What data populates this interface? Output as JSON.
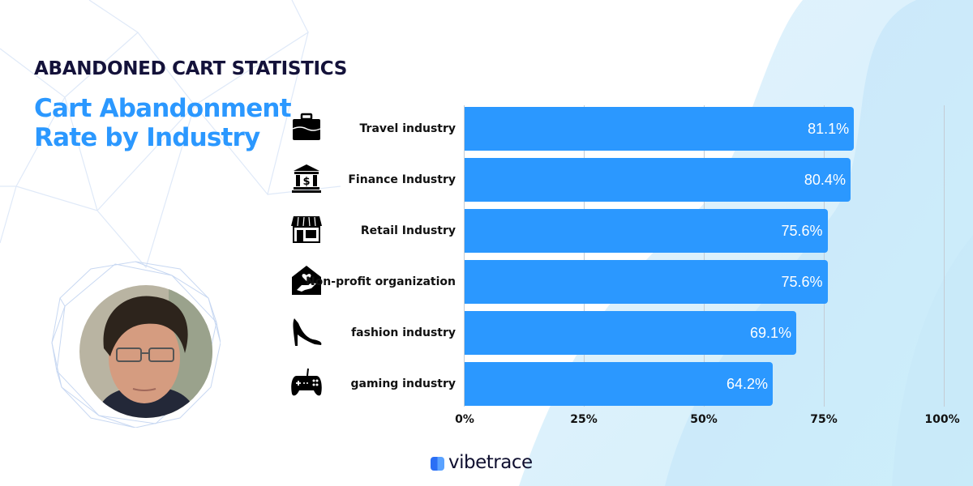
{
  "header": {
    "eyebrow": "ABANDONED CART STATISTICS",
    "title": "Cart Abandonment Rate by Industry"
  },
  "brand": {
    "name": "vibetrace",
    "icon": "vibetrace-logo-icon"
  },
  "colors": {
    "bar": "#2b98ff",
    "title": "#2b98ff",
    "eyebrow": "#14123a",
    "bg_blob": "#d4ecfc"
  },
  "avatar": {
    "icon": "person-photo"
  },
  "rows": [
    {
      "label": "Travel industry",
      "icon": "briefcase-icon",
      "value": 81.1,
      "value_label": "81.1%"
    },
    {
      "label": "Finance Industry",
      "icon": "bank-icon",
      "value": 80.4,
      "value_label": "80.4%"
    },
    {
      "label": "Retail Industry",
      "icon": "storefront-icon",
      "value": 75.6,
      "value_label": "75.6%"
    },
    {
      "label": "Non-profit organization",
      "icon": "charity-house-icon",
      "value": 75.6,
      "value_label": "75.6%"
    },
    {
      "label": "fashion industry",
      "icon": "high-heel-icon",
      "value": 69.1,
      "value_label": "69.1%"
    },
    {
      "label": "gaming industry",
      "icon": "gamepad-icon",
      "value": 64.2,
      "value_label": "64.2%"
    }
  ],
  "axis": {
    "ticks": [
      "0%",
      "25%",
      "50%",
      "75%",
      "100%"
    ]
  },
  "chart_data": {
    "type": "bar",
    "orientation": "horizontal",
    "title": "Cart Abandonment Rate by Industry",
    "subtitle": "ABANDONED CART STATISTICS",
    "categories": [
      "Travel industry",
      "Finance Industry",
      "Retail Industry",
      "Non-profit organization",
      "fashion industry",
      "gaming industry"
    ],
    "values": [
      81.1,
      80.4,
      75.6,
      75.6,
      69.1,
      64.2
    ],
    "data_labels": [
      "81.1%",
      "80.4%",
      "75.6%",
      "75.6%",
      "69.1%",
      "64.2%"
    ],
    "xlabel": "",
    "ylabel": "",
    "xlim": [
      0,
      100
    ],
    "x_ticks": [
      "0%",
      "25%",
      "50%",
      "75%",
      "100%"
    ],
    "grid": true,
    "legend": "none"
  }
}
